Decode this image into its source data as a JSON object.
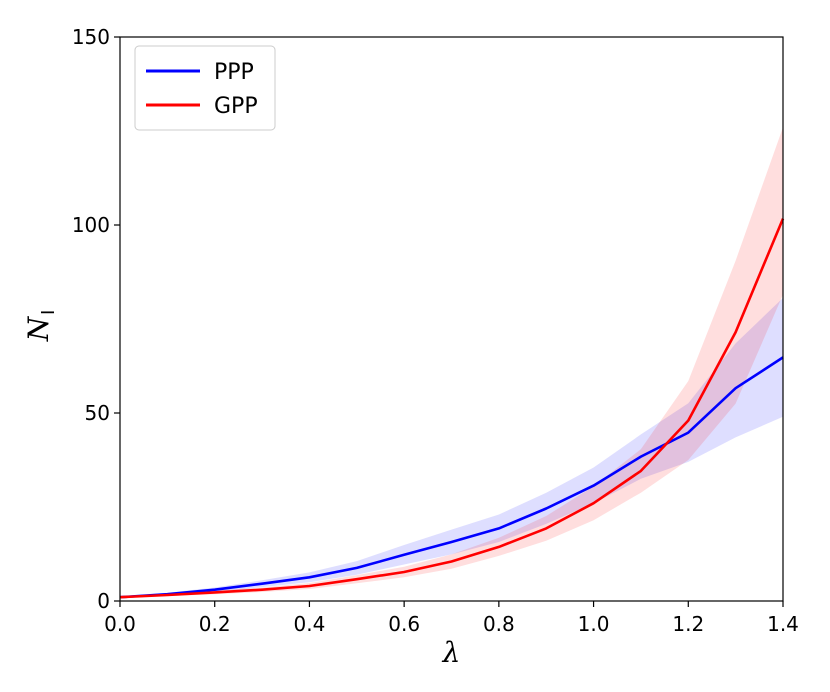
{
  "chart_data": {
    "type": "line",
    "title": "",
    "xlabel": "λ",
    "ylabel": "N",
    "ylabel_subscript": "I",
    "xlim": [
      0.0,
      1.4
    ],
    "ylim": [
      0,
      150
    ],
    "xticks": [
      0.0,
      0.2,
      0.4,
      0.6,
      0.8,
      1.0,
      1.2,
      1.4
    ],
    "xtick_labels": [
      "0.0",
      "0.2",
      "0.4",
      "0.6",
      "0.8",
      "1.0",
      "1.2",
      "1.4"
    ],
    "yticks": [
      0,
      50,
      100,
      150
    ],
    "ytick_labels": [
      "0",
      "50",
      "100",
      "150"
    ],
    "grid": false,
    "legend_position": "top-left",
    "x": [
      0.0,
      0.1,
      0.2,
      0.3,
      0.4,
      0.5,
      0.6,
      0.7,
      0.8,
      0.9,
      1.0,
      1.1,
      1.2,
      1.3,
      1.4
    ],
    "series": [
      {
        "name": "PPP",
        "color": "#0000ff",
        "values": [
          1.0,
          1.8,
          3.0,
          4.6,
          6.3,
          8.8,
          12.3,
          15.7,
          19.3,
          24.6,
          30.7,
          38.4,
          44.8,
          56.6,
          64.8
        ],
        "lower": [
          0.8,
          1.4,
          2.4,
          3.7,
          5.0,
          7.0,
          9.7,
          12.4,
          15.7,
          20.5,
          26.0,
          32.5,
          37.0,
          43.5,
          49.0
        ],
        "upper": [
          1.2,
          2.2,
          3.6,
          5.5,
          7.6,
          10.6,
          14.9,
          19.0,
          23.0,
          28.8,
          35.5,
          44.3,
          52.6,
          68.5,
          80.6
        ]
      },
      {
        "name": "GPP",
        "color": "#ff0000",
        "values": [
          1.0,
          1.6,
          2.3,
          3.0,
          4.0,
          5.8,
          7.7,
          10.5,
          14.4,
          19.3,
          26.0,
          34.6,
          48.0,
          71.5,
          101.7
        ],
        "lower": [
          0.8,
          1.3,
          1.8,
          2.4,
          3.2,
          4.7,
          6.3,
          8.6,
          12.0,
          16.0,
          21.5,
          28.8,
          37.5,
          52.5,
          81.5
        ],
        "upper": [
          1.2,
          1.9,
          2.8,
          3.6,
          4.8,
          6.9,
          9.1,
          12.4,
          16.8,
          22.6,
          30.5,
          40.4,
          58.5,
          90.5,
          126.0
        ]
      }
    ]
  }
}
